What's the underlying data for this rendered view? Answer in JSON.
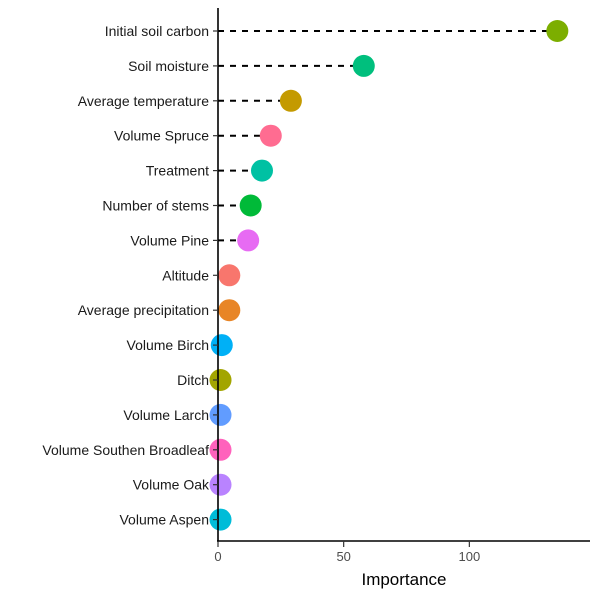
{
  "chart_data": {
    "type": "scatter",
    "subtype": "lollipop",
    "title": "",
    "xlabel": "Importance",
    "ylabel": "",
    "xlim": [
      0,
      148
    ],
    "xticks": [
      0,
      50,
      100
    ],
    "grid": false,
    "legend": "none",
    "line_style": "dashed",
    "categories": [
      "Initial soil carbon",
      "Soil moisture",
      "Average temperature",
      "Volume Spruce",
      "Treatment",
      "Number of stems",
      "Volume Pine",
      "Altitude",
      "Average precipitation",
      "Volume Birch",
      "Ditch",
      "Volume Larch",
      "Volume Southen Broadleaf",
      "Volume Oak",
      "Volume Aspen"
    ],
    "values": [
      135,
      58,
      29,
      21,
      17.5,
      13,
      12,
      4.5,
      4.5,
      1.5,
      1,
      1,
      1,
      1,
      1
    ],
    "colors": [
      "#7CAE00",
      "#00BF7D",
      "#C49A00",
      "#FF6C91",
      "#00C1A3",
      "#00BA38",
      "#E76BF3",
      "#F8766D",
      "#E88526",
      "#00B0F6",
      "#A3A500",
      "#619CFF",
      "#FF62BC",
      "#B983FF",
      "#00BCD8"
    ]
  }
}
